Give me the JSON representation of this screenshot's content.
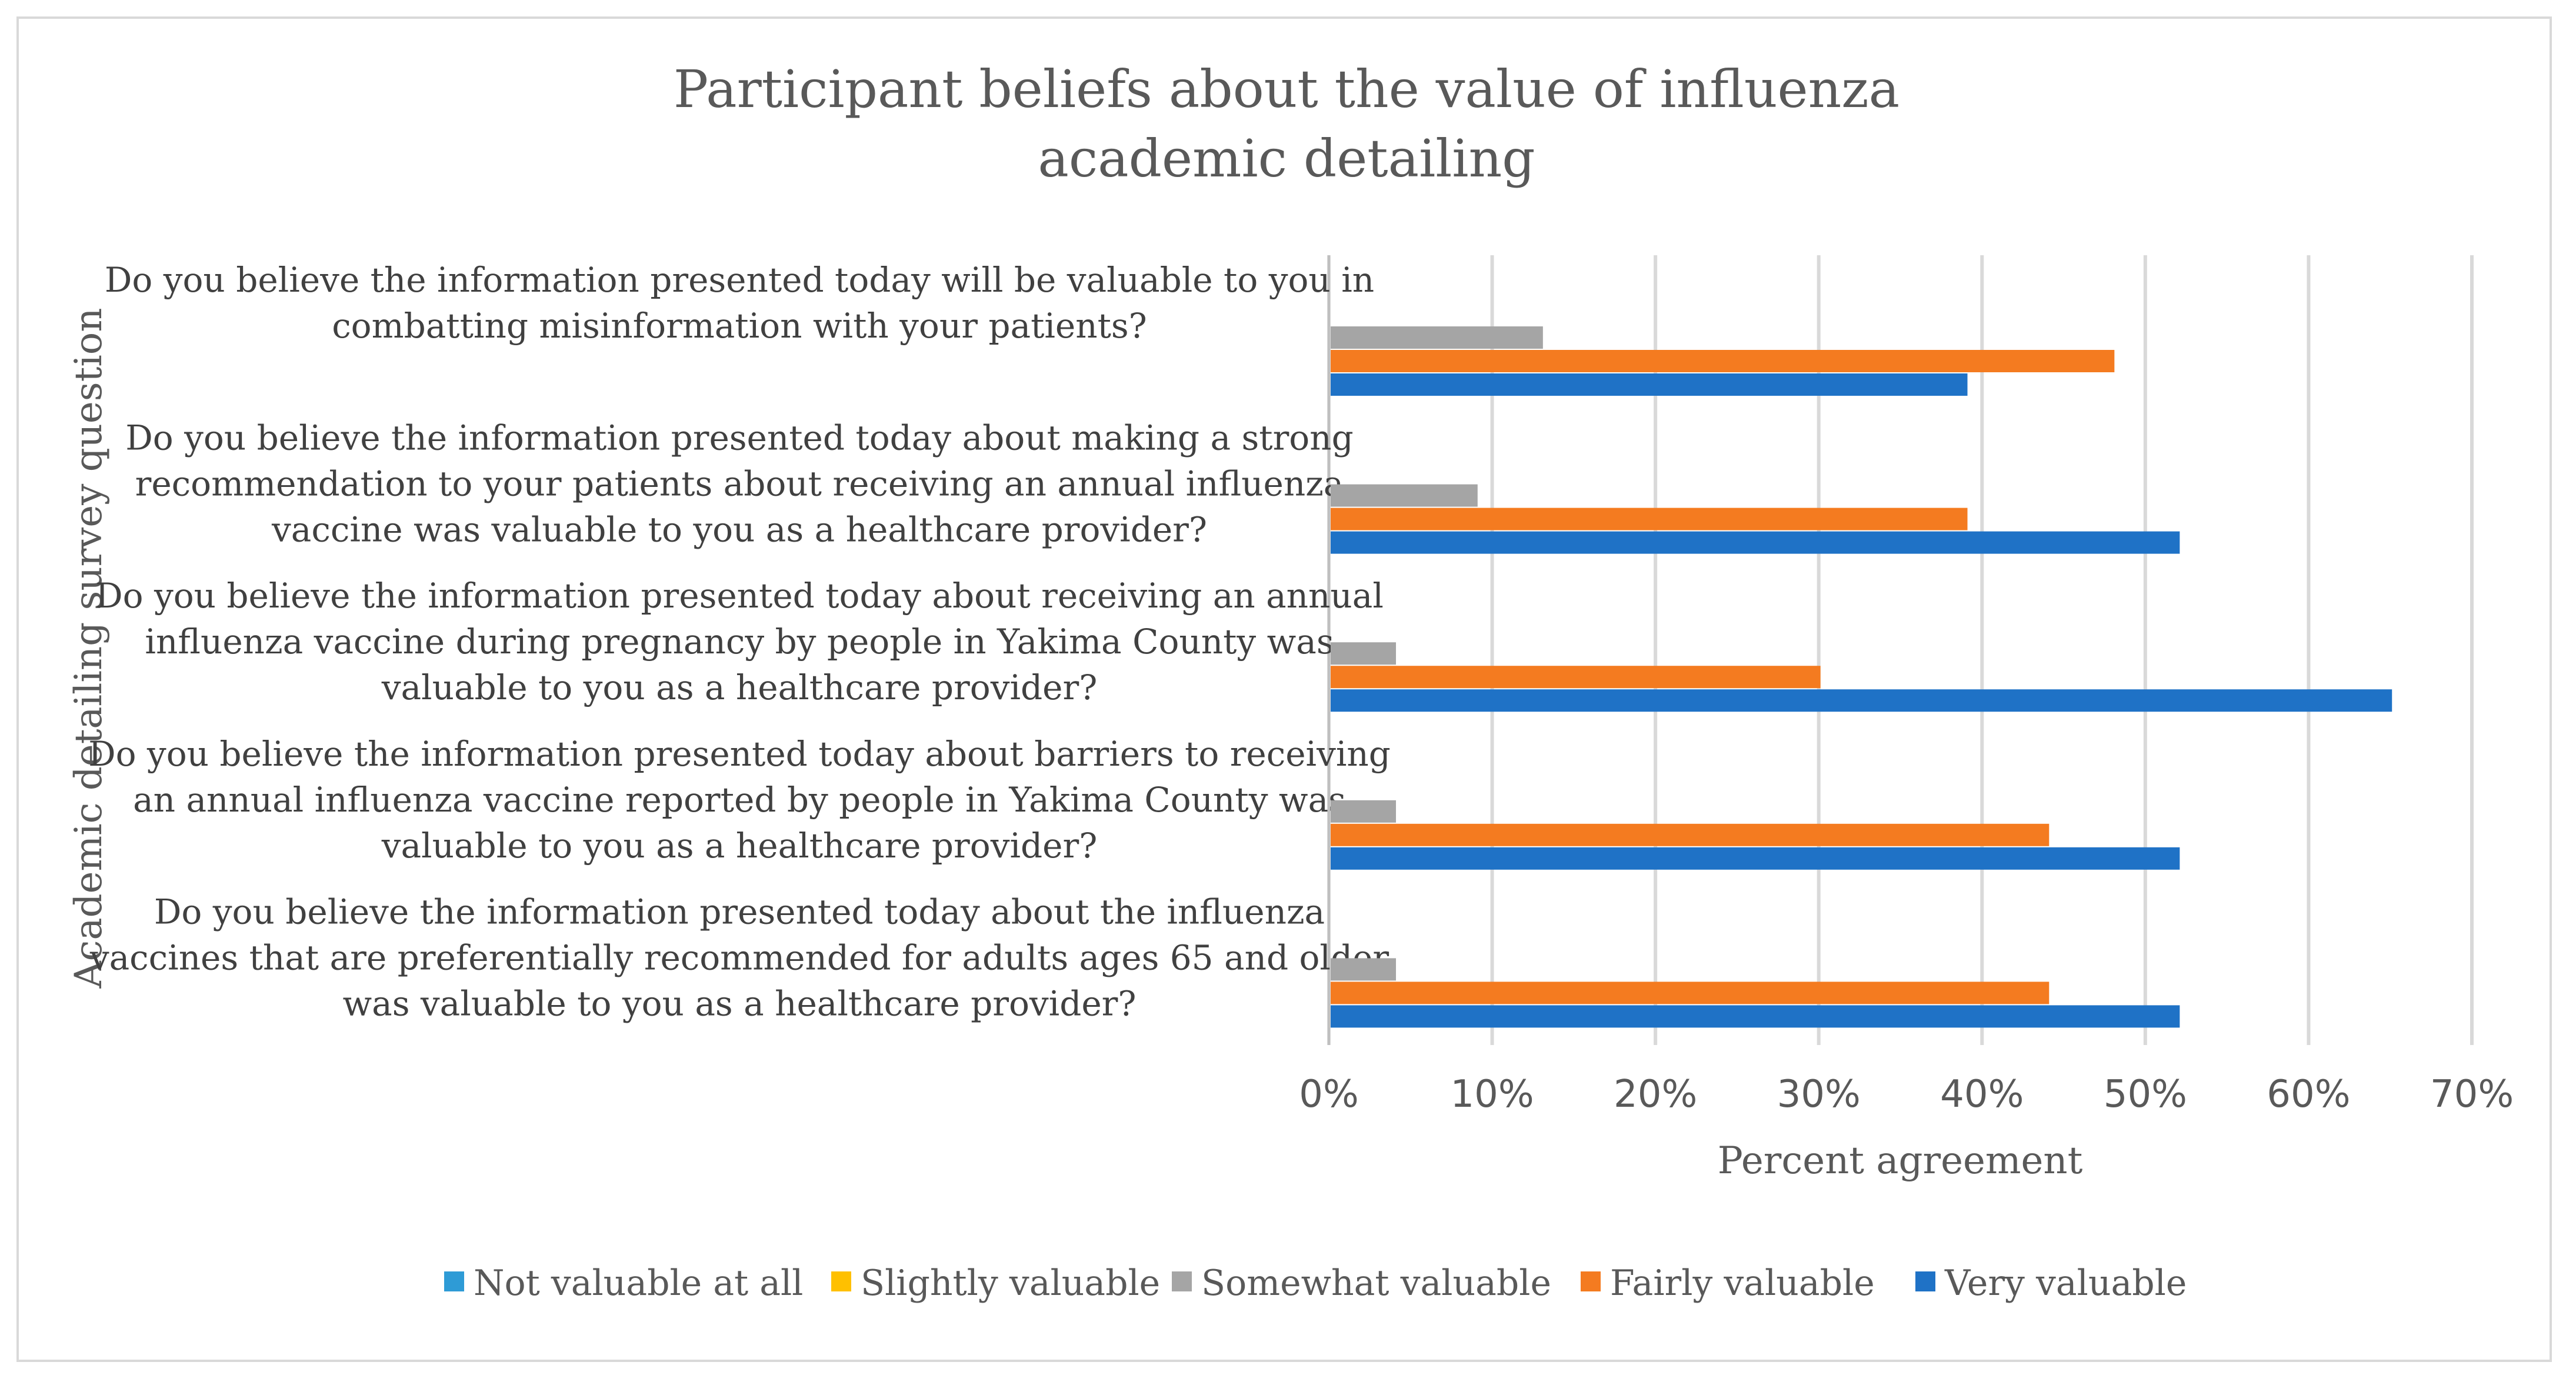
{
  "chart_data": {
    "type": "bar",
    "orientation": "horizontal",
    "title_lines": [
      "Participant beliefs about the value of influenza",
      "academic detailing"
    ],
    "xlabel": "Percent agreement",
    "ylabel": "Academic detailing survey question",
    "xlim": [
      0,
      70
    ],
    "x_ticks": [
      "0%",
      "10%",
      "20%",
      "30%",
      "40%",
      "50%",
      "60%",
      "70%"
    ],
    "grid": true,
    "legend_position": "bottom",
    "categories": [
      [
        "Do you believe the information presented today will be valuable to you in",
        "combatting misinformation with your patients?"
      ],
      [
        "Do you believe the information presented today about making a strong",
        "recommendation to your patients about receiving an annual influenza",
        "vaccine was valuable to you as a healthcare provider?"
      ],
      [
        "Do you believe the information presented today about receiving an annual",
        "influenza vaccine during pregnancy by people in Yakima County was",
        "valuable to you as a healthcare provider?"
      ],
      [
        "Do you believe the information presented today about barriers to receiving",
        "an annual influenza vaccine reported by people in Yakima County was",
        "valuable to you as a healthcare provider?"
      ],
      [
        "Do you believe the information presented today about the influenza",
        "vaccines that are preferentially recommended for adults ages 65 and older",
        "was valuable to you as a healthcare provider?"
      ]
    ],
    "series": [
      {
        "name": "Not valuable at all",
        "color": "#2e9bd6",
        "values": [
          0,
          0,
          0,
          0,
          0
        ]
      },
      {
        "name": "Slightly valuable",
        "color": "#ffc000",
        "values": [
          0,
          0,
          0,
          0,
          0
        ]
      },
      {
        "name": "Somewhat valuable",
        "color": "#a5a5a5",
        "values": [
          13,
          9,
          4,
          4,
          4
        ]
      },
      {
        "name": "Fairly valuable",
        "color": "#f47b20",
        "values": [
          48,
          39,
          30,
          44,
          44
        ]
      },
      {
        "name": "Very valuable",
        "color": "#1f72c6",
        "values": [
          39,
          52,
          65,
          52,
          52
        ]
      }
    ]
  }
}
